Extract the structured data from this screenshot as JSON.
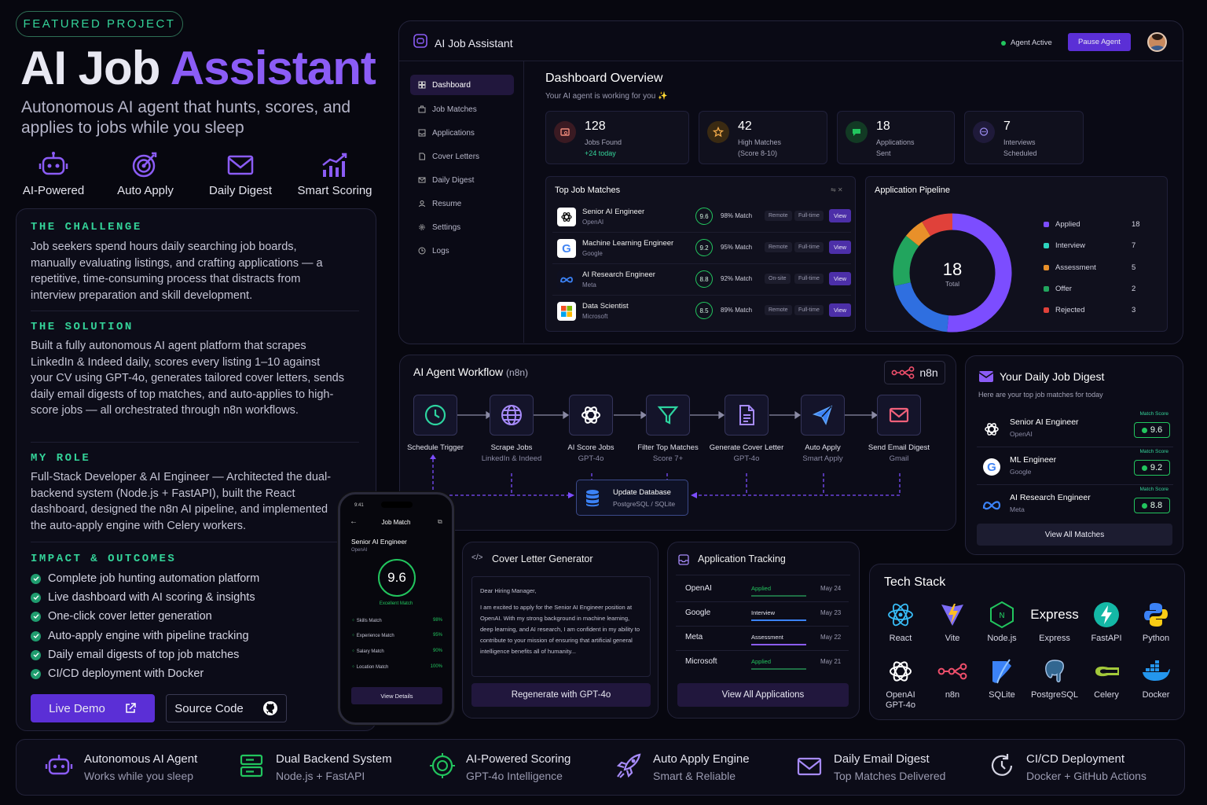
{
  "hero": {
    "tag": "FEATURED PROJECT",
    "title_a": "AI Job",
    "title_b": "Assistant",
    "subtitle": "Autonomous AI agent that hunts, scores, and applies to jobs while you sleep",
    "features": [
      {
        "label": "AI-Powered",
        "icon": "robot-icon"
      },
      {
        "label": "Auto Apply",
        "icon": "target-icon"
      },
      {
        "label": "Daily Digest",
        "icon": "mail-icon"
      },
      {
        "label": "Smart Scoring",
        "icon": "chart-icon"
      }
    ]
  },
  "story": {
    "challenge_h": "THE CHALLENGE",
    "challenge": "Job seekers spend hours daily searching job boards, manually evaluating listings, and crafting applications — a repetitive, time-consuming process that distracts from interview preparation and skill development.",
    "solution_h": "THE SOLUTION",
    "solution": "Built a fully autonomous AI agent platform that scrapes LinkedIn & Indeed daily, scores every listing 1–10 against your CV using GPT-4o, generates tailored cover letters, sends daily email digests of top matches, and auto-applies to high-score jobs — all orchestrated through n8n workflows.",
    "role_h": "MY ROLE",
    "role": "Full-Stack Developer & AI Engineer — Architected the dual-backend system (Node.js + FastAPI), built the React dashboard, designed the n8n AI pipeline, and implemented the auto-apply engine with Celery workers.",
    "impact_h": "IMPACT & OUTCOMES",
    "impacts": [
      "Complete job hunting automation platform",
      "Live dashboard with AI scoring & insights",
      "One-click cover letter generation",
      "Auto-apply engine with pipeline tracking",
      "Daily email digests of top job matches",
      "CI/CD deployment with Docker"
    ],
    "live_demo": "Live Demo",
    "source_code": "Source Code"
  },
  "dashboard": {
    "app_title": "AI Job Assistant",
    "status": "Agent Active",
    "pause": "Pause Agent",
    "nav": [
      "Dashboard",
      "Job Matches",
      "Applications",
      "Cover Letters",
      "Daily Digest",
      "Resume",
      "Settings",
      "Logs"
    ],
    "heading": "Dashboard Overview",
    "subheading": "Your AI agent is working for you ✨",
    "stats": [
      {
        "value": "128",
        "label": "Jobs Found",
        "sub": "+24 today"
      },
      {
        "value": "42",
        "label": "High Matches",
        "sub": "(Score 8-10)"
      },
      {
        "value": "18",
        "label": "Applications",
        "sub": "Sent"
      },
      {
        "value": "7",
        "label": "Interviews",
        "sub": "Scheduled"
      }
    ],
    "top_matches_title": "Top Job Matches",
    "jobs": [
      {
        "title": "Senior AI Engineer",
        "company": "OpenAI",
        "score": "9.6",
        "match": "98% Match",
        "tag1": "Remote",
        "tag2": "Full-time",
        "view": "View"
      },
      {
        "title": "Machine Learning Engineer",
        "company": "Google",
        "score": "9.2",
        "match": "95% Match",
        "tag1": "Remote",
        "tag2": "Full-time",
        "view": "View"
      },
      {
        "title": "AI Research Engineer",
        "company": "Meta",
        "score": "8.8",
        "match": "92% Match",
        "tag1": "On-site",
        "tag2": "Full-time",
        "view": "View"
      },
      {
        "title": "Data Scientist",
        "company": "Microsoft",
        "score": "8.5",
        "match": "89% Match",
        "tag1": "Remote",
        "tag2": "Full-time",
        "view": "View"
      }
    ],
    "pipeline_title": "Application Pipeline",
    "pipeline_total": "18",
    "pipeline_total_label": "Total",
    "pipeline": [
      {
        "name": "Applied",
        "value": 18,
        "color": "#7c4dff"
      },
      {
        "name": "Interview",
        "value": 7,
        "color": "#2f6fe0"
      },
      {
        "name": "Assessment",
        "value": 5,
        "color": "#22a55e"
      },
      {
        "name": "Offer",
        "value": 2,
        "color": "#e8902a"
      },
      {
        "name": "Rejected",
        "value": 3,
        "color": "#e0413a"
      }
    ]
  },
  "workflow": {
    "title": "AI Agent Workflow",
    "title_suffix": "(n8n)",
    "badge": "n8n",
    "nodes": [
      {
        "label": "Schedule Trigger",
        "sub": ""
      },
      {
        "label": "Scrape Jobs",
        "sub": "LinkedIn & Indeed"
      },
      {
        "label": "AI Score Jobs",
        "sub": "GPT-4o"
      },
      {
        "label": "Filter Top Matches",
        "sub": "Score 7+"
      },
      {
        "label": "Generate Cover Letter",
        "sub": "GPT-4o"
      },
      {
        "label": "Auto Apply",
        "sub": "Smart Apply"
      },
      {
        "label": "Send Email Digest",
        "sub": "Gmail"
      }
    ],
    "db_label": "Update Database",
    "db_sub": "PostgreSQL / SQLite"
  },
  "digest": {
    "title": "Your Daily Job Digest",
    "subtitle": "Here are your top job matches for today",
    "score_label": "Match Score",
    "items": [
      {
        "title": "Senior AI Engineer",
        "company": "OpenAI",
        "score": "9.6"
      },
      {
        "title": "ML Engineer",
        "company": "Google",
        "score": "9.2"
      },
      {
        "title": "AI Research Engineer",
        "company": "Meta",
        "score": "8.8"
      }
    ],
    "button": "View All Matches"
  },
  "phone": {
    "time": "9:41",
    "title": "Job Match",
    "job": "Senior AI Engineer",
    "company": "OpenAI",
    "score": "9.6",
    "score_label": "Excellent Match",
    "bars": [
      {
        "name": "Skills Match",
        "value": "98%"
      },
      {
        "name": "Experience Match",
        "value": "95%"
      },
      {
        "name": "Salary Match",
        "value": "90%"
      },
      {
        "name": "Location Match",
        "value": "100%"
      }
    ],
    "button": "View Details"
  },
  "cover": {
    "title": "Cover Letter Generator",
    "greeting": "Dear Hiring Manager,",
    "body": "I am excited to apply for the Senior AI Engineer position at OpenAI. With my strong background in machine learning, deep learning, and AI research, I am confident in my ability to contribute to your mission of ensuring that artificial general intelligence benefits all of humanity...",
    "button": "Regenerate with GPT-4o"
  },
  "tracking": {
    "title": "Application Tracking",
    "rows": [
      {
        "company": "OpenAI",
        "status": "Applied",
        "date": "May 24"
      },
      {
        "company": "Google",
        "status": "Interview",
        "date": "May 23"
      },
      {
        "company": "Meta",
        "status": "Assessment",
        "date": "May 22"
      },
      {
        "company": "Microsoft",
        "status": "Applied",
        "date": "May 21"
      }
    ],
    "button": "View All Applications"
  },
  "tech": {
    "title": "Tech Stack",
    "items": [
      "React",
      "Vite",
      "Node.js",
      "Express",
      "FastAPI",
      "Python",
      "OpenAI GPT-4o",
      "n8n",
      "SQLite",
      "PostgreSQL",
      "Celery",
      "Docker"
    ],
    "express_logo": "Express"
  },
  "bottom": [
    {
      "l1": "Autonomous AI Agent",
      "l2": "Works while you sleep"
    },
    {
      "l1": "Dual Backend System",
      "l2": "Node.js + FastAPI"
    },
    {
      "l1": "AI-Powered Scoring",
      "l2": "GPT-4o Intelligence"
    },
    {
      "l1": "Auto Apply Engine",
      "l2": "Smart & Reliable"
    },
    {
      "l1": "Daily Email Digest",
      "l2": "Top Matches Delivered"
    },
    {
      "l1": "CI/CD Deployment",
      "l2": "Docker + GitHub Actions"
    }
  ]
}
